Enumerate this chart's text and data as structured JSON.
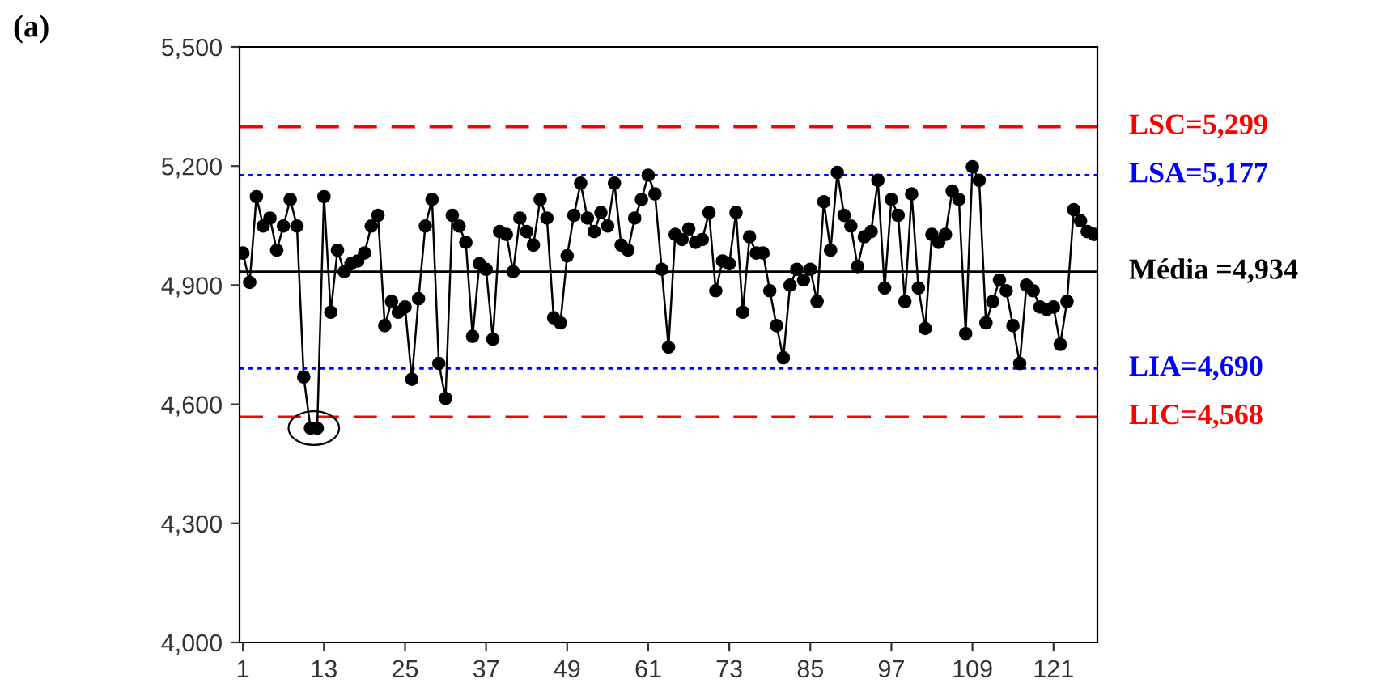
{
  "chart_data": {
    "type": "line",
    "x": [
      1,
      2,
      3,
      4,
      5,
      6,
      7,
      8,
      9,
      10,
      11,
      12,
      13,
      14,
      15,
      16,
      17,
      18,
      19,
      20,
      21,
      22,
      23,
      24,
      25,
      26,
      27,
      28,
      29,
      30,
      31,
      32,
      33,
      34,
      35,
      36,
      37,
      38,
      39,
      40,
      41,
      42,
      43,
      44,
      45,
      46,
      47,
      48,
      49,
      50,
      51,
      52,
      53,
      54,
      55,
      56,
      57,
      58,
      59,
      60,
      61,
      62,
      63,
      64,
      65,
      66,
      67,
      68,
      69,
      70,
      71,
      72,
      73,
      74,
      75,
      76,
      77,
      78,
      79,
      80,
      81,
      82,
      83,
      84,
      85,
      86,
      87,
      88,
      89,
      90,
      91,
      92,
      93,
      94,
      95,
      96,
      97,
      98,
      99,
      100,
      101,
      102,
      103,
      104,
      105,
      106,
      107,
      108,
      109,
      110,
      111,
      112,
      113,
      114,
      115,
      116,
      117,
      118,
      119,
      120,
      121,
      122,
      123,
      124,
      125,
      126,
      127
    ],
    "series": [
      {
        "color": "#000000",
        "values": [
          4981,
          4907,
          5123,
          5049,
          5069,
          4988,
          5049,
          5116,
          5049,
          4669,
          4540,
          4540,
          5123,
          4832,
          4988,
          4934,
          4954,
          4961,
          4981,
          5049,
          5076,
          4798,
          4859,
          4832,
          4845,
          4663,
          4866,
          5049,
          5116,
          4703,
          4615,
          5076,
          5049,
          5008,
          4771,
          4954,
          4940,
          4764,
          5035,
          5028,
          4934,
          5069,
          5035,
          5001,
          5116,
          5069,
          4818,
          4805,
          4974,
          5076,
          5157,
          5069,
          5035,
          5083,
          5049,
          5157,
          5001,
          4988,
          5069,
          5116,
          5177,
          5130,
          4940,
          4744,
          5028,
          5015,
          5042,
          5008,
          5015,
          5083,
          4886,
          4961,
          4954,
          5083,
          4832,
          5022,
          4981,
          4981,
          4886,
          4798,
          4717,
          4900,
          4940,
          4913,
          4940,
          4859,
          5110,
          4988,
          5184,
          5076,
          5049,
          4947,
          5022,
          5035,
          5164,
          4893,
          5116,
          5076,
          4859,
          5130,
          4893,
          4791,
          5028,
          5008,
          5028,
          5137,
          5116,
          4778,
          5198,
          5164,
          4805,
          4859,
          4913,
          4886,
          4798,
          4703,
          4900,
          4886,
          4845,
          4839,
          4845,
          4751,
          4859,
          5090,
          5062,
          5035,
          5028
        ]
      }
    ],
    "xlim": [
      0.5,
      127.5
    ],
    "xticks": [
      1,
      13,
      25,
      37,
      49,
      61,
      73,
      85,
      97,
      109,
      121
    ],
    "ylim": [
      4000,
      5500
    ],
    "yticks": [
      {
        "value": 4000,
        "label": "4,000"
      },
      {
        "value": 4300,
        "label": "4,300"
      },
      {
        "value": 4600,
        "label": "4,600"
      },
      {
        "value": 4900,
        "label": "4,900"
      },
      {
        "value": 5200,
        "label": "5,200"
      },
      {
        "value": 5500,
        "label": "5,500"
      }
    ],
    "ref_lines": [
      {
        "axis": "y",
        "value": 5299,
        "label": "LSC=5,299",
        "color": "#ff0000",
        "line_style": "dashed"
      },
      {
        "axis": "y",
        "value": 5177,
        "label": "LSA=5,177",
        "color": "#0000ff",
        "line_style": "dotted"
      },
      {
        "axis": "y",
        "value": 4934,
        "label": "Média =4,934",
        "color": "#000000",
        "line_style": "solid"
      },
      {
        "axis": "y",
        "value": 4690,
        "label": "LIA=4,690",
        "color": "#0000ff",
        "line_style": "dotted"
      },
      {
        "axis": "y",
        "value": 4568,
        "label": "LIC=4,568",
        "color": "#ff0000",
        "line_style": "dashed"
      }
    ],
    "annotations": [
      "(a)"
    ],
    "marker": "circle",
    "line_style": "solid",
    "grid": false,
    "legend": false
  }
}
